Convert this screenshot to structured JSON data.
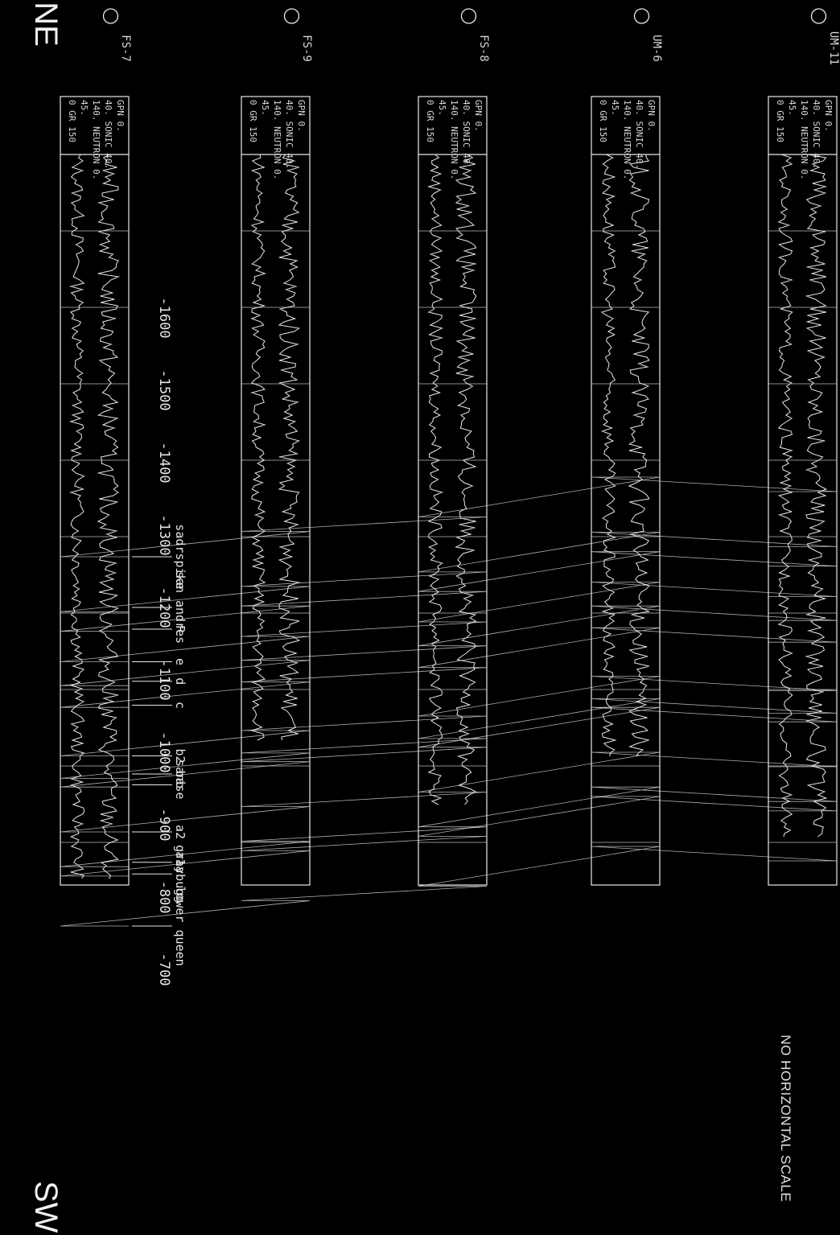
{
  "orientation": {
    "left": "SW",
    "right": "NE"
  },
  "note": "NO HORIZONTAL SCALE",
  "depth_axis": {
    "ticks": [
      -700,
      -800,
      -900,
      -1000,
      -1100,
      -1200,
      -1300,
      -1400,
      -1500,
      -1600
    ],
    "tick_labels": [
      "-700",
      "-800",
      "-900",
      "-1000",
      "-1100",
      "-1200",
      "-1300",
      "-1400",
      "-1500",
      "-1600"
    ]
  },
  "formation_tops": [
    {
      "name": "lower queen",
      "depth": -760
    },
    {
      "name": "graybugg",
      "depth": -832
    },
    {
      "name": "a1a",
      "depth": -848
    },
    {
      "name": "a2",
      "depth": -890
    },
    {
      "name": "base",
      "depth": -955
    },
    {
      "name": "sanb",
      "depth": -970
    },
    {
      "name": "b2",
      "depth": -995
    },
    {
      "name": "c",
      "depth": -1065
    },
    {
      "name": "d",
      "depth": -1098
    },
    {
      "name": "e",
      "depth": -1125
    },
    {
      "name": "R",
      "depth": -1170
    },
    {
      "name": "san andres",
      "depth": -1200
    },
    {
      "name": "sadrspike",
      "depth": -1270
    }
  ],
  "log_header": {
    "lines": [
      "GPN 0.",
      "40. SONIC 40.",
      "140. NEUTRON 0.",
      "45.",
      "0 GR 150"
    ]
  },
  "wells": [
    {
      "name": "FS-7"
    },
    {
      "name": "FS-9"
    },
    {
      "name": "FS-8"
    },
    {
      "name": "UM-6"
    },
    {
      "name": "UM-11"
    }
  ],
  "colors": {
    "background": "#000000",
    "line": "#e8e8e8"
  }
}
